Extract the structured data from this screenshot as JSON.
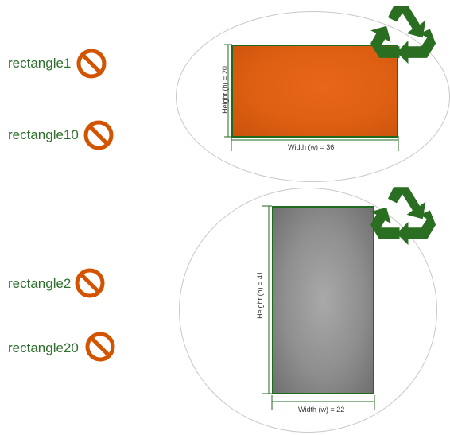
{
  "labels": {
    "r1": "rectangle1",
    "r10": "rectangle10",
    "r2": "rectangle2",
    "r20": "rectangle20"
  },
  "shape1": {
    "width_label": "Width (w) = 36",
    "height_label": "Height (h) = 20",
    "fill": "#de5f12"
  },
  "shape2": {
    "width_label": "Width (w) = 22",
    "height_label": "Height (h) = 41",
    "fill": "#8f8f8f"
  },
  "colors": {
    "label_text": "#2e6f2e",
    "no_icon": "#d35400",
    "recycle": "#2a6e22",
    "dimension_line": "#1e6b1e"
  },
  "icons": {
    "prohibited": "no-entry-icon",
    "recycle": "recycle-icon"
  }
}
